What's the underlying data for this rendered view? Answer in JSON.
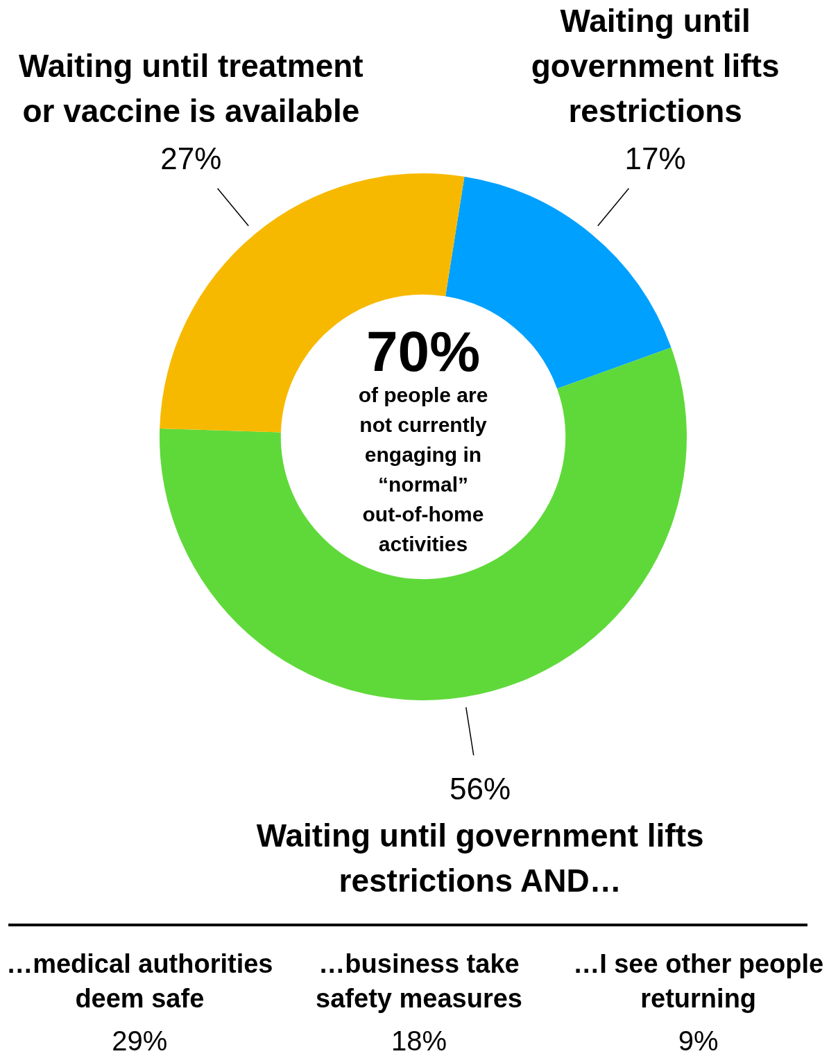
{
  "chart_data": {
    "type": "donut",
    "title": "70%",
    "subtitle": "of people are not currently engaging in “normal” out-of-home activities",
    "categories": [
      "Waiting until government lifts restrictions",
      "Waiting until government lifts restrictions AND…",
      "Waiting until treatment or vaccine is available"
    ],
    "values": [
      17,
      56,
      27
    ],
    "colors": [
      "#00a0ff",
      "#5fd93a",
      "#f7b900"
    ],
    "value_labels": [
      "17%",
      "56%",
      "27%"
    ],
    "legend": false,
    "annotations": [
      "…medical authorities deem safe",
      "29%",
      "…business take safety measures",
      "18%",
      "…I see other people returning",
      "9%"
    ]
  }
}
